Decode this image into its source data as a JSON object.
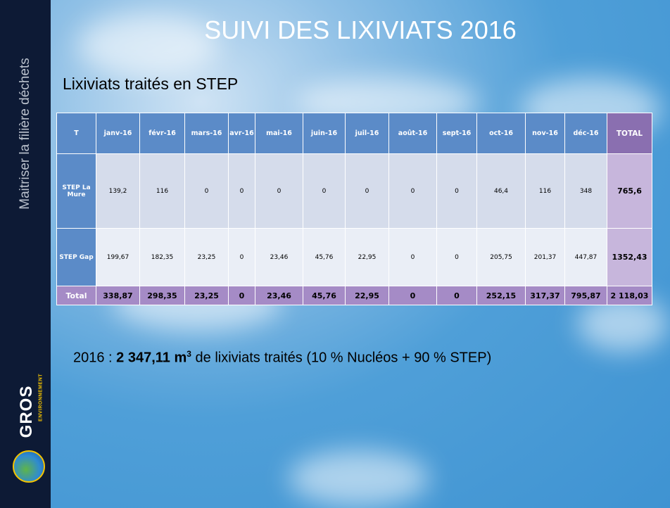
{
  "sidebar": {
    "text": "Maitriser la filière déchets",
    "logo": "GROS",
    "logo_sub": "ENVIRONNEMENT"
  },
  "title": "SUIVI DES LIXIVIATS 2016",
  "subtitle": "Lixiviats traités en STEP",
  "table": {
    "header": [
      "T",
      "janv-16",
      "févr-16",
      "mars-16",
      "avr-16",
      "mai-16",
      "juin-16",
      "juil-16",
      "août-16",
      "sept-16",
      "oct-16",
      "nov-16",
      "déc-16",
      "TOTAL"
    ],
    "rows": [
      [
        "STEP La Mure",
        "139,2",
        "116",
        "0",
        "0",
        "0",
        "0",
        "0",
        "0",
        "0",
        "46,4",
        "116",
        "348",
        "765,6"
      ],
      [
        "STEP Gap",
        "199,67",
        "182,35",
        "23,25",
        "0",
        "23,46",
        "45,76",
        "22,95",
        "0",
        "0",
        "205,75",
        "201,37",
        "447,87",
        "1352,43"
      ],
      [
        "Total",
        "338,87",
        "298,35",
        "23,25",
        "0",
        "23,46",
        "45,76",
        "22,95",
        "0",
        "0",
        "252,15",
        "317,37",
        "795,87",
        "2 118,03"
      ]
    ]
  },
  "note": {
    "prefix": "2016 : ",
    "bold": "2 347,11 m",
    "sup": "3",
    "rest": " de lixiviats traités (10 % Nucléos + 90 % STEP)"
  }
}
